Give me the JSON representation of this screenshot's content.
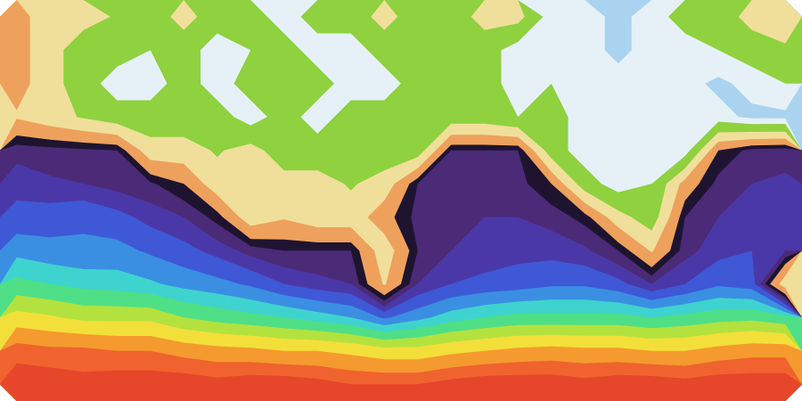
{
  "chart_data": {
    "type": "contour",
    "tick_labels": false,
    "cells": [
      [
        4,
        3,
        3,
        2.5,
        2,
        3,
        2,
        2,
        1,
        2,
        2,
        3,
        2,
        2,
        3,
        3,
        1,
        1,
        0.5,
        1,
        2,
        2,
        3,
        3
      ],
      [
        4,
        3,
        2,
        2,
        1.5,
        2,
        1,
        1.5,
        2,
        1,
        1,
        2,
        2,
        2,
        2,
        1,
        1,
        1,
        0.5,
        1,
        1,
        1.5,
        2,
        2.5
      ],
      [
        4,
        3,
        2,
        1,
        1,
        2,
        1,
        2,
        2,
        2,
        1,
        1,
        2,
        2,
        2,
        1,
        1.5,
        1,
        1,
        1,
        1,
        0.5,
        1,
        1.5
      ],
      [
        3.5,
        3,
        2.5,
        2,
        2,
        2,
        2,
        1,
        2,
        1,
        2,
        2,
        2,
        2,
        2,
        1.5,
        2,
        1,
        1,
        1,
        1,
        1,
        0.5,
        0.5
      ],
      [
        5.3,
        5.2,
        5.1,
        5,
        3,
        3,
        2.5,
        3,
        2,
        2,
        2,
        2,
        2,
        5,
        5,
        5,
        2,
        1,
        1,
        1,
        1,
        4.5,
        5.2,
        5.3
      ],
      [
        5.8,
        5.6,
        5.5,
        5.3,
        5.1,
        4.5,
        3,
        3,
        3,
        3,
        2.5,
        3,
        5,
        5.2,
        5.3,
        5.2,
        4.5,
        2,
        1,
        1.5,
        4,
        5.2,
        5.5,
        5.6
      ],
      [
        6.2,
        6.3,
        6.5,
        6.2,
        5.8,
        5.5,
        4.8,
        3,
        3.5,
        3,
        3,
        4.2,
        5.2,
        5.3,
        5.5,
        5.5,
        5.3,
        4.8,
        3,
        2,
        5,
        5.5,
        5.6,
        5.8
      ],
      [
        7,
        6.8,
        6.7,
        6.8,
        6.5,
        6.2,
        5.8,
        5.3,
        5,
        5,
        5,
        3,
        5,
        5.5,
        5.6,
        5.8,
        5.8,
        5.6,
        5,
        3.5,
        5.3,
        5.8,
        6,
        5.5
      ],
      [
        8,
        7.8,
        7.6,
        7.5,
        7.3,
        7,
        6.8,
        6.5,
        6,
        5.7,
        5.5,
        3.5,
        5.5,
        6,
        6.2,
        6.3,
        6.5,
        6.5,
        6.2,
        5.5,
        6,
        6.5,
        6.3,
        3
      ],
      [
        9.5,
        9.3,
        9,
        9,
        9,
        8.5,
        8.2,
        8,
        7.8,
        7.5,
        7.2,
        6.5,
        7,
        7.5,
        7.8,
        8,
        8,
        8,
        8,
        7.8,
        8,
        8.2,
        8.3,
        8
      ],
      [
        11.2,
        11,
        11,
        10.8,
        10.8,
        10.5,
        10.3,
        10.2,
        10,
        10,
        9.8,
        9.5,
        9.5,
        9.8,
        10,
        10.2,
        10.3,
        10.2,
        10.2,
        10,
        10,
        10.3,
        10.5,
        10.5
      ],
      [
        12,
        12,
        11.8,
        12,
        12,
        12,
        11.8,
        12,
        12,
        11.8,
        11.5,
        11.5,
        11.5,
        11.8,
        12,
        12,
        12,
        11.8,
        12,
        12,
        11.8,
        12,
        12,
        12
      ]
    ],
    "thresholds": [
      -1,
      0.7,
      1.5,
      2.6,
      3.6,
      4.5,
      5,
      5.5,
      6,
      6.6,
      7.2,
      7.8,
      8.5,
      9.2,
      10,
      10.8,
      11.5
    ],
    "colors": [
      "#a9d3ef",
      "#e6f1f7",
      "#8fd13f",
      "#f0df9a",
      "#eea15c",
      "#1e1430",
      "#4b2a78",
      "#4b38a8",
      "#3f58d6",
      "#3b8fe2",
      "#3fd3cf",
      "#4fdf86",
      "#b3e23e",
      "#f3df3a",
      "#f59a2e",
      "#f0632e",
      "#e6462a"
    ]
  }
}
